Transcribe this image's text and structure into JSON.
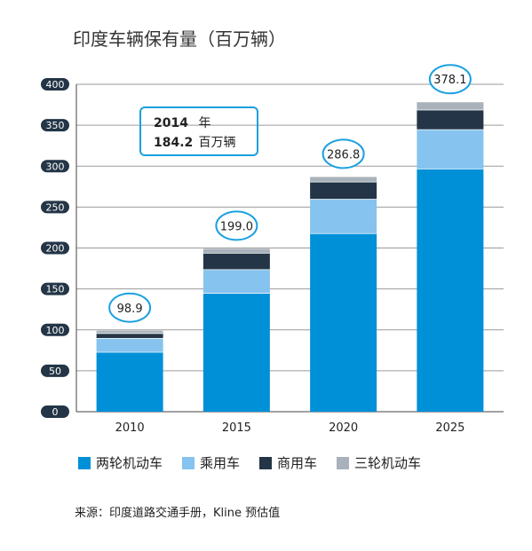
{
  "title": "印度车辆保有量（百万辆）",
  "chart_data": {
    "type": "bar",
    "stacked": true,
    "title": "印度车辆保有量（百万辆）",
    "categories": [
      "2010",
      "2015",
      "2020",
      "2025"
    ],
    "series": [
      {
        "name": "两轮机动车",
        "color": "#0090d8",
        "values": [
          73,
          145,
          218,
          297
        ]
      },
      {
        "name": "乘用车",
        "color": "#86c3ee",
        "values": [
          17,
          29,
          42,
          48
        ]
      },
      {
        "name": "商用车",
        "color": "#233546",
        "values": [
          6,
          20,
          21,
          24
        ]
      },
      {
        "name": "三轮机动车",
        "color": "#a9b2bb",
        "values": [
          2.9,
          5.0,
          5.8,
          9.1
        ]
      }
    ],
    "totals": [
      "98.9",
      "199.0",
      "286.8",
      "378.1"
    ],
    "ylim": [
      0,
      400
    ],
    "yticks": [
      "0",
      "50",
      "100",
      "150",
      "200",
      "250",
      "300",
      "350",
      "400"
    ],
    "grid": true,
    "legend": "bottom"
  },
  "callout": {
    "year": "2014",
    "year_unit": "年",
    "value": "184.2",
    "value_unit": "百万辆"
  },
  "source": "来源：印度道路交通手册，Kline 预估值"
}
